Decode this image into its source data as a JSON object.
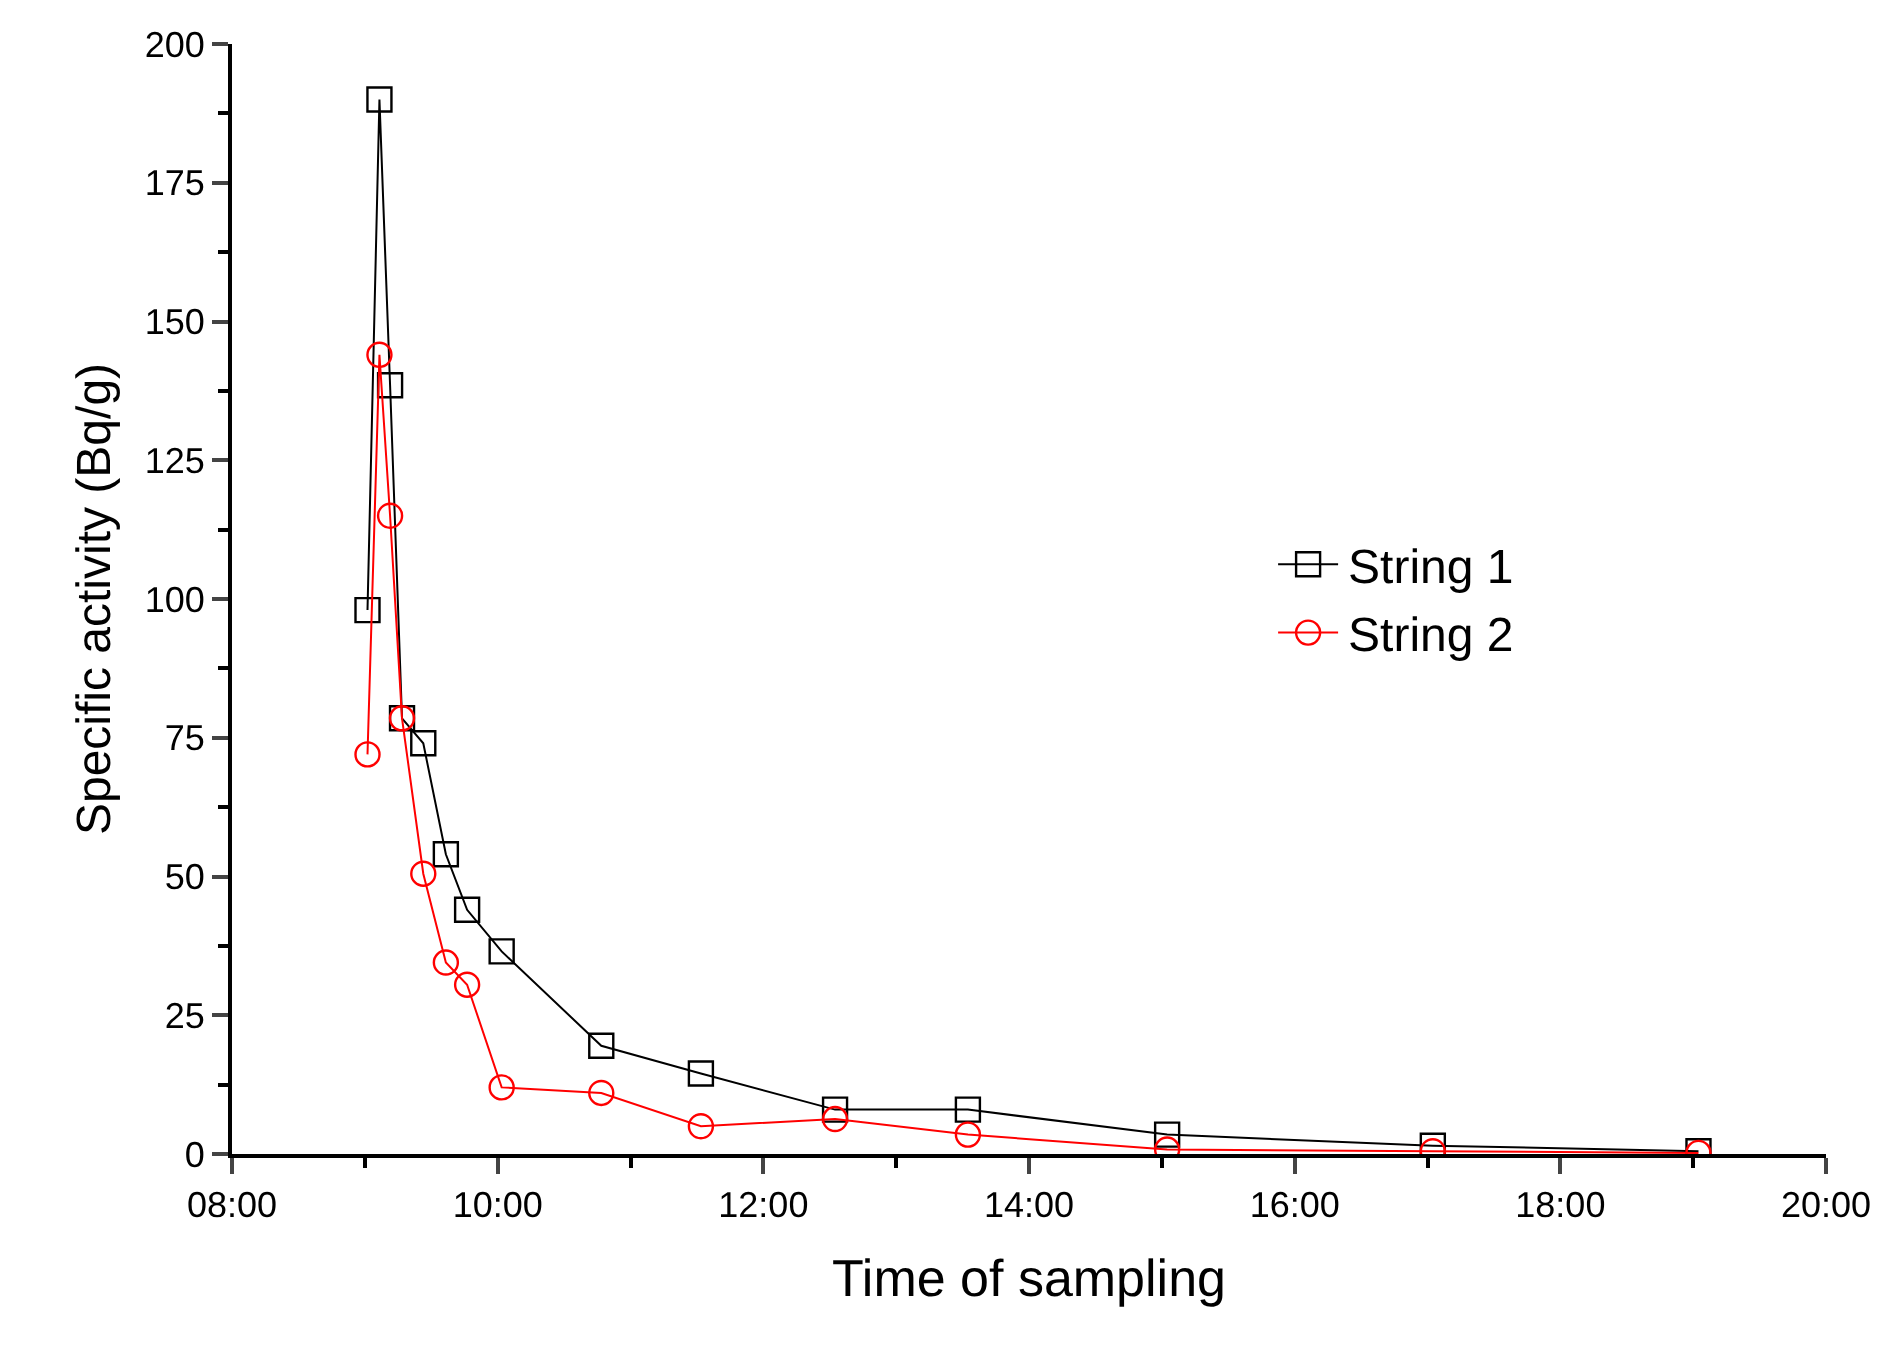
{
  "chart_data": {
    "type": "line",
    "xlabel": "Time of sampling",
    "ylabel": "Specific activity (Bq/g)",
    "x": [
      9.02,
      9.11,
      9.19,
      9.28,
      9.44,
      9.61,
      9.77,
      10.03,
      10.78,
      11.53,
      12.54,
      13.54,
      15.04,
      17.04,
      19.04
    ],
    "series": [
      {
        "name": "String 1",
        "color": "#000000",
        "marker": "square",
        "values": [
          98,
          190,
          138.5,
          78.5,
          74,
          54,
          44,
          36.5,
          19.5,
          14.5,
          8,
          8,
          3.5,
          1.5,
          0.5
        ]
      },
      {
        "name": "String 2",
        "color": "#ff0000",
        "marker": "circle",
        "values": [
          72,
          144,
          115,
          78.5,
          50.5,
          34.5,
          30.5,
          12,
          11,
          5,
          6.3,
          3.5,
          0.8,
          0.5,
          0.2
        ]
      }
    ],
    "xlim": [
      8,
      20
    ],
    "xticks": [
      {
        "value": 8,
        "label": "08:00"
      },
      {
        "value": 9,
        "label": null
      },
      {
        "value": 10,
        "label": "10:00"
      },
      {
        "value": 11,
        "label": null
      },
      {
        "value": 12,
        "label": "12:00"
      },
      {
        "value": 13,
        "label": null
      },
      {
        "value": 14,
        "label": "14:00"
      },
      {
        "value": 15,
        "label": null
      },
      {
        "value": 16,
        "label": "16:00"
      },
      {
        "value": 17,
        "label": null
      },
      {
        "value": 18,
        "label": "18:00"
      },
      {
        "value": 19,
        "label": null
      },
      {
        "value": 20,
        "label": "20:00"
      }
    ],
    "ylim": [
      0,
      200
    ],
    "yticks": [
      0,
      {
        "value": 12.5,
        "label": null
      },
      25,
      {
        "value": 37.5,
        "label": null
      },
      50,
      {
        "value": 62.5,
        "label": null
      },
      75,
      {
        "value": 87.5,
        "label": null
      },
      100,
      {
        "value": 112.5,
        "label": null
      },
      125,
      {
        "value": 137.5,
        "label": null
      },
      150,
      {
        "value": 162.5,
        "label": null
      },
      175,
      {
        "value": 187.5,
        "label": null
      },
      200
    ],
    "legend": "right",
    "line_style": "solid"
  }
}
